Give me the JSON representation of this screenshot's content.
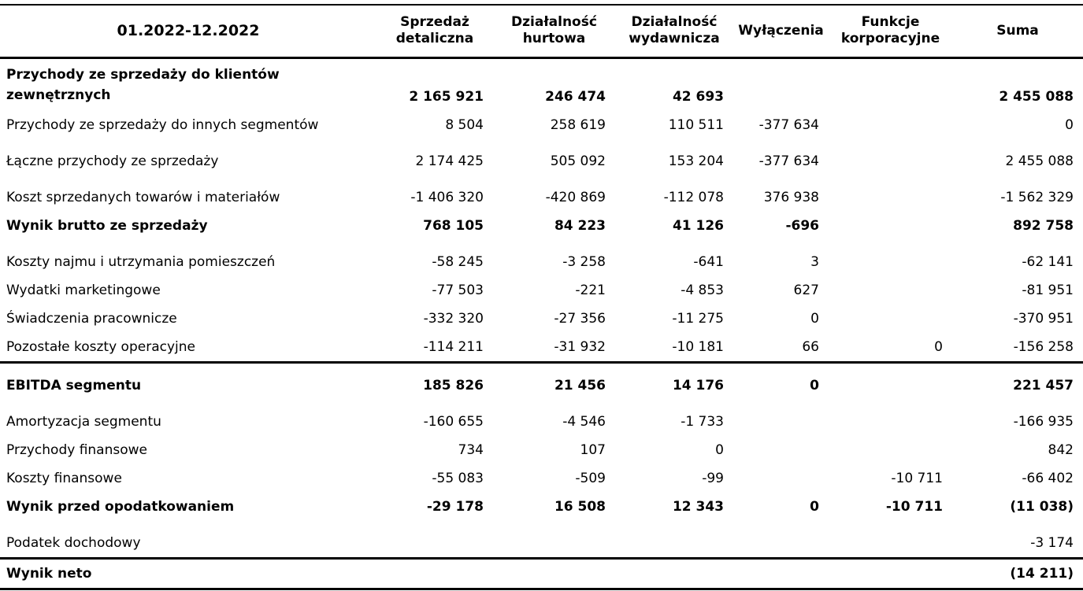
{
  "page": {
    "background": "#ffffff",
    "text_color": "#000000",
    "rule_color": "#000000"
  },
  "table": {
    "period": "01.2022-12.2022",
    "columns": [
      "Sprzedaż detaliczna",
      "Działalność hurtowa",
      "Działalność wydawnicza",
      "Wyłączenia",
      "Funkcje korporacyjne",
      "Suma"
    ],
    "rows": [
      {
        "label": "Przychody ze sprzedaży do klientów zewnętrznych",
        "bold": true,
        "gap": false,
        "rule_above": false,
        "rule_below": false,
        "tall": true,
        "values": [
          "2 165 921",
          "246 474",
          "42 693",
          "",
          "",
          "2 455 088"
        ]
      },
      {
        "label": "Przychody ze sprzedaży do innych segmentów",
        "bold": false,
        "gap": false,
        "rule_above": false,
        "rule_below": false,
        "tall": false,
        "values": [
          "8 504",
          "258 619",
          "110 511",
          "-377 634",
          "",
          "0"
        ]
      },
      {
        "label": "Łączne przychody ze sprzedaży",
        "bold": false,
        "gap": true,
        "rule_above": false,
        "rule_below": false,
        "tall": false,
        "values": [
          "2 174 425",
          "505 092",
          "153 204",
          "-377 634",
          "",
          "2 455 088"
        ]
      },
      {
        "label": "Koszt sprzedanych towarów i materiałów",
        "bold": false,
        "gap": true,
        "rule_above": false,
        "rule_below": false,
        "tall": false,
        "values": [
          "-1 406 320",
          "-420 869",
          "-112 078",
          "376 938",
          "",
          "-1 562 329"
        ]
      },
      {
        "label": "Wynik brutto ze sprzedaży",
        "bold": true,
        "gap": false,
        "rule_above": false,
        "rule_below": false,
        "tall": false,
        "values": [
          "768 105",
          "84 223",
          "41 126",
          "-696",
          "",
          "892 758"
        ]
      },
      {
        "label": "Koszty najmu i utrzymania pomieszczeń",
        "bold": false,
        "gap": true,
        "rule_above": false,
        "rule_below": false,
        "tall": false,
        "values": [
          "-58 245",
          "-3 258",
          "-641",
          "3",
          "",
          "-62 141"
        ]
      },
      {
        "label": "Wydatki marketingowe",
        "bold": false,
        "gap": false,
        "rule_above": false,
        "rule_below": false,
        "tall": false,
        "values": [
          "-77 503",
          "-221",
          "-4 853",
          "627",
          "",
          "-81 951"
        ]
      },
      {
        "label": "Świadczenia pracownicze",
        "bold": false,
        "gap": false,
        "rule_above": false,
        "rule_below": false,
        "tall": false,
        "values": [
          "-332 320",
          "-27 356",
          "-11 275",
          "0",
          "",
          "-370 951"
        ]
      },
      {
        "label": "Pozostałe koszty operacyjne",
        "bold": false,
        "gap": false,
        "rule_above": false,
        "rule_below": false,
        "tall": false,
        "values": [
          "-114 211",
          "-31 932",
          "-10 181",
          "66",
          "0",
          "-156 258"
        ]
      },
      {
        "label": "EBITDA segmentu",
        "bold": true,
        "gap": true,
        "rule_above": true,
        "rule_below": false,
        "tall": false,
        "values": [
          "185 826",
          "21 456",
          "14 176",
          "0",
          "",
          "221 457"
        ]
      },
      {
        "label": "Amortyzacja segmentu",
        "bold": false,
        "gap": true,
        "rule_above": false,
        "rule_below": false,
        "tall": false,
        "values": [
          "-160 655",
          "-4 546",
          "-1 733",
          "",
          "",
          "-166 935"
        ]
      },
      {
        "label": "Przychody finansowe",
        "bold": false,
        "gap": false,
        "rule_above": false,
        "rule_below": false,
        "tall": false,
        "values": [
          "734",
          "107",
          "0",
          "",
          "",
          "842"
        ]
      },
      {
        "label": "Koszty finansowe",
        "bold": false,
        "gap": false,
        "rule_above": false,
        "rule_below": false,
        "tall": false,
        "values": [
          "-55 083",
          "-509",
          "-99",
          "",
          "-10 711",
          "-66 402"
        ]
      },
      {
        "label": "Wynik przed opodatkowaniem",
        "bold": true,
        "gap": false,
        "rule_above": false,
        "rule_below": false,
        "tall": false,
        "values": [
          "-29 178",
          "16 508",
          "12 343",
          "0",
          "-10 711",
          "(11 038)"
        ]
      },
      {
        "label": "Podatek dochodowy",
        "bold": false,
        "gap": true,
        "rule_above": false,
        "rule_below": false,
        "tall": false,
        "values": [
          "",
          "",
          "",
          "",
          "",
          "-3 174"
        ]
      },
      {
        "label": "Wynik neto",
        "bold": true,
        "gap": false,
        "rule_above": true,
        "rule_below": true,
        "tall": false,
        "values": [
          "",
          "",
          "",
          "",
          "",
          "(14 211)"
        ]
      }
    ]
  }
}
